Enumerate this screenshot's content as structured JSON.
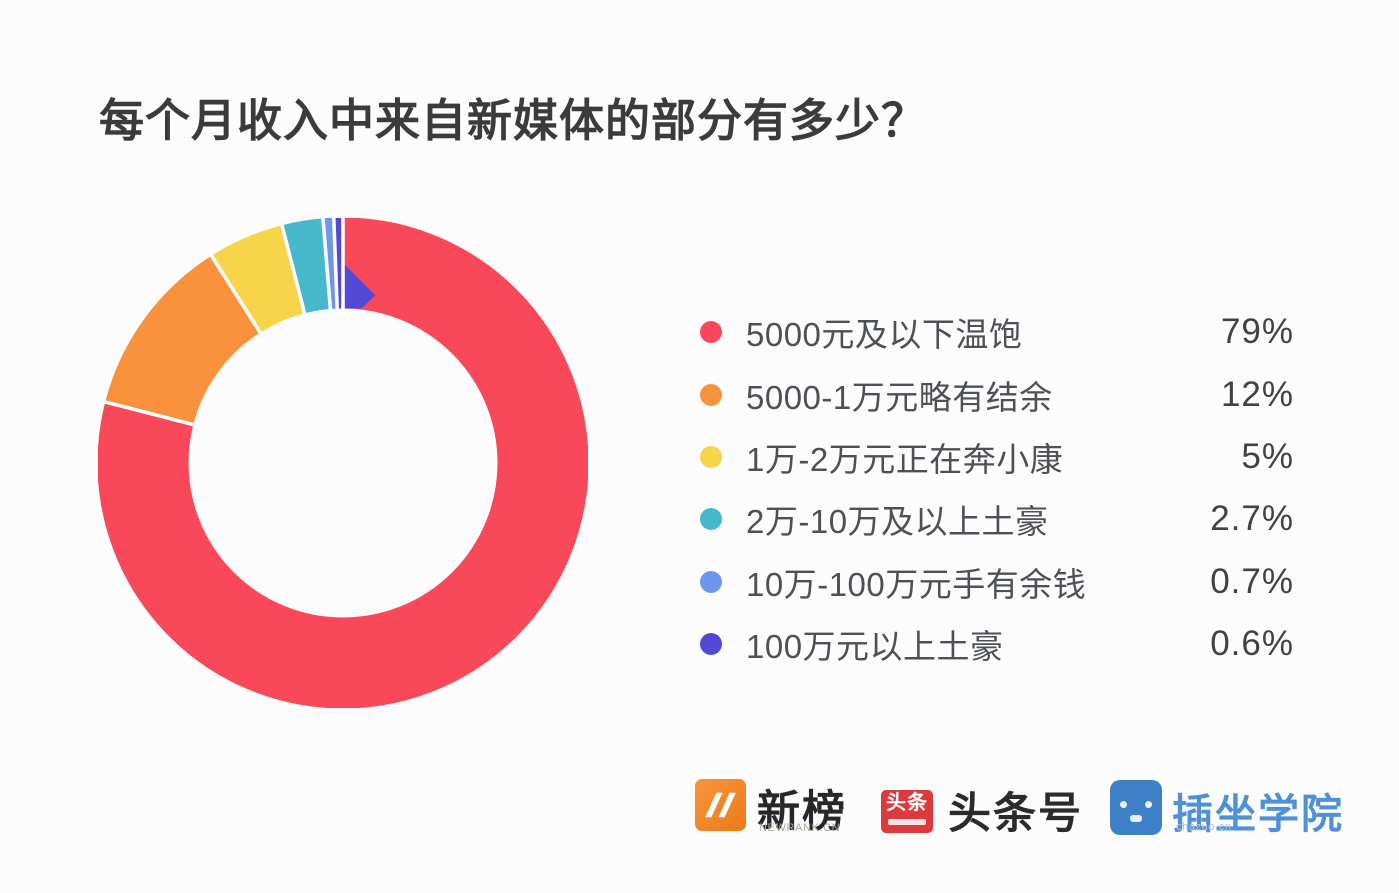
{
  "title": "每个月收入中来自新媒体的部分有多少？",
  "chart_data": {
    "type": "pie",
    "subtype": "donut",
    "title": "每个月收入中来自新媒体的部分有多少？",
    "start_angle_deg": 0,
    "direction": "clockwise",
    "legend_position": "right",
    "background_color": "#FCFCFC",
    "segments": [
      {
        "label": "5000元及以下温饱",
        "value": 79,
        "display": "79%",
        "color": "#F9485A"
      },
      {
        "label": "5000-1万元略有结余",
        "value": 12,
        "display": "12%",
        "color": "#F9913D"
      },
      {
        "label": "1万-2万元正在奔小康",
        "value": 5,
        "display": "5%",
        "color": "#F8D44B"
      },
      {
        "label": "2万-10万及以上土豪",
        "value": 2.7,
        "display": "2.7%",
        "color": "#46B8CB"
      },
      {
        "label": "10万-100万元手有余钱",
        "value": 0.7,
        "display": "0.7%",
        "color": "#6E96EE"
      },
      {
        "label": "100万元以上土豪",
        "value": 0.6,
        "display": "0.6%",
        "color": "#5349D6"
      }
    ]
  },
  "footer": {
    "logos": [
      {
        "name": "newrank",
        "text": "新榜",
        "subtext": "NEWRANK.CN",
        "icon": "n-lightning-mark",
        "icon_color": "#EE7E1D"
      },
      {
        "name": "toutiaohao",
        "text": "头条号",
        "icon_text": "头条",
        "icon": "toutiao-badge",
        "icon_color": "#DC3A3C"
      },
      {
        "name": "chazuo",
        "text": "插坐学院",
        "subtext": "chazuo.cn",
        "icon": "robot-face",
        "icon_color": "#3E80C6"
      }
    ]
  }
}
